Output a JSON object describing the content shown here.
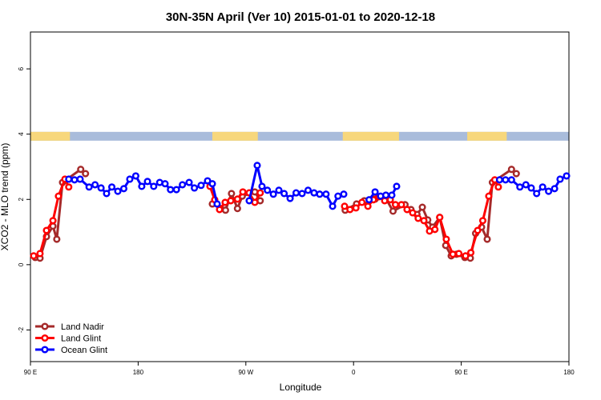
{
  "chart_data": {
    "type": "line",
    "title": "30N-35N April (Ver 10)   2015-01-01 to 2020-12-18",
    "x_label": "Longitude",
    "y_label": "XCO2 - MLO trend (ppm)",
    "xlim": [
      90,
      540
    ],
    "ylim": [
      -2.97,
      7.13
    ],
    "xticks": [
      {
        "value": 90,
        "label": "90 E"
      },
      {
        "value": 180,
        "label": "180"
      },
      {
        "value": 270,
        "label": "90 W"
      },
      {
        "value": 360,
        "label": "0"
      },
      {
        "value": 450,
        "label": "90 E"
      },
      {
        "value": 540,
        "label": "180"
      }
    ],
    "yticks": [
      -2,
      0,
      2,
      4,
      6
    ],
    "legend": "bottomleft",
    "surface_band": {
      "ylim": [
        3.8,
        4.07
      ],
      "ocean_color": "#a9bcdb",
      "land_color": "#f7d77c",
      "land": [
        [
          90,
          123
        ],
        [
          242,
          280
        ],
        [
          351,
          398
        ],
        [
          455,
          488
        ]
      ]
    },
    "series": [
      {
        "name": "Land Nadir",
        "color": "#a52a2a",
        "x": [
          94,
          98,
          103.4,
          108.8,
          112,
          116.8,
          132,
          136,
          null,
          242,
          249,
          253,
          258,
          263,
          267,
          277.5,
          282,
          null,
          353,
          362.5,
          369,
          378,
          387,
          393,
          403,
          408,
          413,
          417.5,
          422,
          426,
          432,
          437,
          441.6,
          446,
          453,
          457.6,
          462,
          467,
          471.7,
          476,
          492,
          496
        ],
        "values": [
          0.22,
          0.2,
          0.86,
          1.18,
          0.78,
          2.52,
          2.92,
          2.79,
          null,
          1.86,
          1.72,
          1.67,
          2.18,
          1.72,
          2.1,
          2.23,
          1.96,
          null,
          1.67,
          1.86,
          1.96,
          2.01,
          2.03,
          1.64,
          1.84,
          1.69,
          1.54,
          1.76,
          1.37,
          1.15,
          1.45,
          0.59,
          0.27,
          0.32,
          0.22,
          0.2,
          0.96,
          1.15,
          0.78,
          2.52,
          2.92,
          2.79
        ]
      },
      {
        "name": "Land Glint",
        "color": "#ff0000",
        "x": [
          92.7,
          98,
          103.4,
          108.8,
          113.4,
          118.8,
          122,
          null,
          240,
          244,
          248,
          252.7,
          257.4,
          263,
          267.5,
          272.8,
          277.5,
          282,
          null,
          352.5,
          357,
          362,
          367,
          372,
          376.6,
          381,
          386,
          390.7,
          395,
          400,
          404.7,
          409.4,
          414,
          418.8,
          423.5,
          428,
          432,
          437.5,
          443,
          448,
          453.6,
          458,
          463.7,
          468,
          473,
          478,
          481
        ],
        "values": [
          0.27,
          0.34,
          1.05,
          1.35,
          2.1,
          2.62,
          2.38,
          null,
          2.4,
          1.99,
          1.69,
          1.91,
          1.96,
          2.01,
          2.23,
          2.2,
          1.91,
          2.2,
          null,
          1.79,
          1.69,
          1.74,
          1.91,
          1.79,
          1.99,
          2.08,
          1.96,
          1.99,
          1.84,
          1.84,
          1.69,
          1.59,
          1.42,
          1.35,
          1.03,
          1.08,
          1.45,
          0.78,
          0.32,
          0.34,
          0.27,
          0.37,
          1.05,
          1.35,
          2.1,
          2.6,
          2.38
        ]
      },
      {
        "name": "Ocean Glint",
        "color": "#0000ff",
        "x": [
          122,
          126.8,
          131.5,
          139,
          144,
          149,
          153.6,
          158,
          163,
          168,
          173,
          178,
          183,
          187.8,
          193,
          198,
          202.5,
          207,
          212,
          217,
          222.6,
          227,
          232.6,
          238,
          242,
          246,
          null,
          272.8,
          279.5,
          283.5,
          288,
          293,
          297.6,
          302,
          307,
          312,
          317,
          322,
          327,
          331.7,
          337,
          342.5,
          347,
          351.8,
          null,
          373,
          378,
          382.6,
          387,
          392,
          396,
          null,
          482,
          487,
          492,
          499,
          504,
          508.5,
          513,
          518,
          523,
          528,
          532.6,
          538
        ],
        "values": [
          2.62,
          2.6,
          2.62,
          2.38,
          2.45,
          2.35,
          2.18,
          2.38,
          2.25,
          2.33,
          2.62,
          2.72,
          2.4,
          2.55,
          2.4,
          2.52,
          2.48,
          2.3,
          2.3,
          2.45,
          2.52,
          2.35,
          2.43,
          2.57,
          2.48,
          1.86,
          null,
          1.96,
          3.04,
          2.4,
          2.28,
          2.16,
          2.28,
          2.18,
          2.03,
          2.2,
          2.18,
          2.28,
          2.2,
          2.16,
          2.16,
          1.79,
          2.1,
          2.16,
          null,
          1.99,
          2.23,
          2.1,
          2.13,
          2.13,
          2.4,
          null,
          2.6,
          2.6,
          2.6,
          2.38,
          2.45,
          2.35,
          2.18,
          2.38,
          2.25,
          2.33,
          2.62,
          2.72
        ]
      }
    ]
  }
}
